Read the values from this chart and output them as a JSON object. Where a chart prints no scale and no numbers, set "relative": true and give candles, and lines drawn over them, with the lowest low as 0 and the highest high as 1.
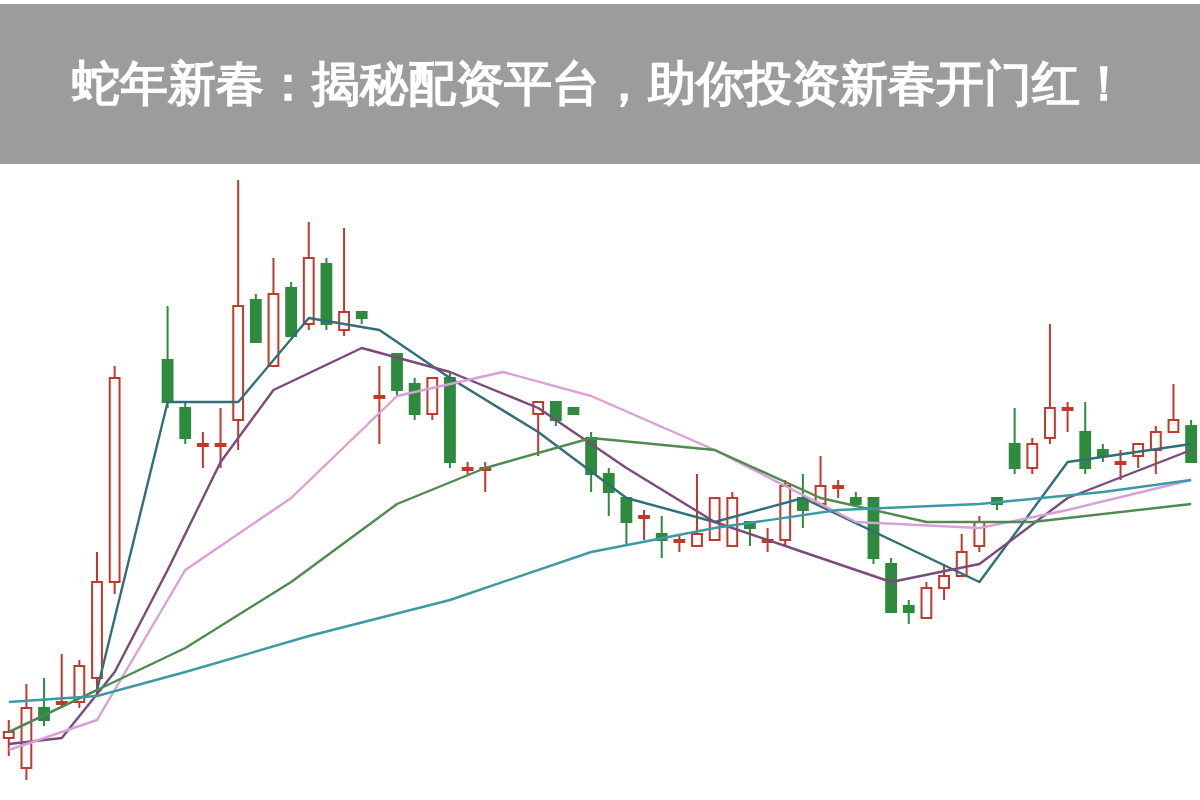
{
  "chart_data": {
    "type": "candlestick",
    "title": "蛇年新春：揭秘配资平台，助你投资新春开门红！",
    "relative": true,
    "categories": [
      null,
      null,
      null,
      null,
      null,
      null,
      null,
      null,
      null,
      null,
      null,
      null,
      null,
      null,
      null,
      null,
      null,
      null,
      null,
      null,
      null,
      null,
      null,
      null,
      null,
      null,
      null,
      null,
      null,
      null,
      null,
      null,
      null,
      null,
      null,
      null,
      null,
      null,
      null,
      null,
      null,
      null,
      null,
      null,
      null,
      null,
      null,
      null,
      null,
      null,
      null,
      null,
      null,
      null,
      null,
      null,
      null,
      null,
      null,
      null,
      null,
      null,
      null,
      null,
      null,
      null,
      null,
      null
    ],
    "ohlc": [
      [
        0.07,
        0.1,
        0.04,
        0.08
      ],
      [
        0.02,
        0.16,
        0,
        0.12
      ],
      [
        0.12,
        0.17,
        0.09,
        0.1
      ],
      [
        0.13,
        0.21,
        0.12,
        0.13
      ],
      [
        0.13,
        0.2,
        0.12,
        0.19
      ],
      [
        0.17,
        0.38,
        0.14,
        0.33
      ],
      [
        0.33,
        0.69,
        0.31,
        0.67
      ],
      null,
      null,
      [
        0.7,
        0.79,
        0.62,
        0.63
      ],
      [
        0.62,
        0.63,
        0.56,
        0.57
      ],
      [
        0.56,
        0.58,
        0.52,
        0.56
      ],
      [
        0.56,
        0.62,
        0.52,
        0.56
      ],
      [
        0.6,
        1.0,
        0.55,
        0.79
      ],
      [
        0.8,
        0.81,
        0.73,
        0.73
      ],
      [
        0.69,
        0.87,
        0.69,
        0.81
      ],
      [
        0.82,
        0.83,
        0.74,
        0.74
      ],
      [
        0.76,
        0.93,
        0.75,
        0.87
      ],
      [
        0.86,
        0.87,
        0.75,
        0.76
      ],
      [
        0.75,
        0.92,
        0.74,
        0.78
      ],
      [
        0.78,
        0.78,
        0.76,
        0.77
      ],
      [
        0.64,
        0.69,
        0.56,
        0.64
      ],
      [
        0.71,
        0.71,
        0.64,
        0.65
      ],
      [
        0.66,
        0.67,
        0.6,
        0.61
      ],
      [
        0.61,
        0.67,
        0.6,
        0.67
      ],
      [
        0.67,
        0.68,
        0.52,
        0.53
      ],
      [
        0.52,
        0.53,
        0.51,
        0.52
      ],
      [
        0.52,
        0.53,
        0.48,
        0.52
      ],
      null,
      null,
      [
        0.61,
        0.63,
        0.54,
        0.63
      ],
      [
        0.63,
        0.63,
        0.59,
        0.6
      ],
      [
        0.62,
        0.62,
        0.61,
        0.61
      ],
      [
        0.57,
        0.58,
        0.48,
        0.51
      ],
      [
        0.51,
        0.52,
        0.44,
        0.48
      ],
      [
        0.47,
        0.47,
        0.39,
        0.43
      ],
      [
        0.44,
        0.45,
        0.4,
        0.44
      ],
      [
        0.41,
        0.44,
        0.37,
        0.4
      ],
      [
        0.4,
        0.41,
        0.38,
        0.4
      ],
      [
        0.39,
        0.51,
        0.39,
        0.41
      ],
      [
        0.4,
        0.47,
        0.4,
        0.47
      ],
      [
        0.39,
        0.48,
        0.39,
        0.47
      ],
      [
        0.43,
        0.43,
        0.39,
        0.42
      ],
      [
        0.4,
        0.42,
        0.38,
        0.4
      ],
      [
        0.4,
        0.5,
        0.39,
        0.49
      ],
      [
        0.47,
        0.51,
        0.42,
        0.45
      ],
      [
        0.46,
        0.54,
        0.46,
        0.49
      ],
      [
        0.49,
        0.5,
        0.47,
        0.49
      ],
      [
        0.47,
        0.48,
        0.46,
        0.46
      ],
      [
        0.47,
        0.47,
        0.36,
        0.37
      ],
      [
        0.36,
        0.37,
        0.28,
        0.28
      ],
      [
        0.29,
        0.3,
        0.26,
        0.28
      ],
      [
        0.27,
        0.33,
        0.27,
        0.32
      ],
      [
        0.32,
        0.36,
        0.3,
        0.34
      ],
      [
        0.34,
        0.41,
        0.34,
        0.38
      ],
      [
        0.39,
        0.44,
        0.38,
        0.43
      ],
      [
        0.47,
        0.47,
        0.45,
        0.46
      ],
      [
        0.56,
        0.62,
        0.51,
        0.52
      ],
      [
        0.52,
        0.57,
        0.51,
        0.56
      ],
      [
        0.57,
        0.76,
        0.56,
        0.62
      ],
      [
        0.62,
        0.63,
        0.58,
        0.62
      ],
      [
        0.58,
        0.63,
        0.51,
        0.52
      ],
      [
        0.55,
        0.56,
        0.53,
        0.54
      ],
      [
        0.53,
        0.55,
        0.5,
        0.53
      ],
      [
        0.54,
        0.56,
        0.52,
        0.56
      ],
      [
        0.55,
        0.59,
        0.51,
        0.58
      ],
      [
        0.58,
        0.66,
        0.58,
        0.6
      ],
      [
        0.59,
        0.6,
        0.53,
        0.53
      ]
    ],
    "series": [
      {
        "type": "line",
        "color": "#2f6f7a",
        "values": [
          0.08,
          null,
          null,
          null,
          null,
          0.15,
          null,
          null,
          null,
          0.63,
          null,
          null,
          null,
          0.63,
          null,
          null,
          null,
          0.77,
          null,
          null,
          null,
          0.75,
          null,
          null,
          null,
          0.67,
          null,
          null,
          null,
          null,
          0.58,
          null,
          null,
          null,
          null,
          0.47,
          null,
          null,
          null,
          null,
          0.43,
          null,
          null,
          null,
          null,
          0.47,
          null,
          null,
          null,
          null,
          0.4,
          null,
          null,
          null,
          null,
          0.33,
          null,
          null,
          null,
          null,
          0.53,
          null,
          null,
          null,
          null,
          null,
          null,
          0.56
        ]
      },
      {
        "type": "line",
        "color": "#7b4a7d",
        "values": [
          0.06,
          null,
          null,
          0.07,
          null,
          null,
          0.18,
          null,
          null,
          0.35,
          null,
          null,
          0.53,
          null,
          null,
          0.65,
          null,
          null,
          null,
          null,
          0.72,
          null,
          null,
          null,
          null,
          0.68,
          null,
          null,
          null,
          null,
          0.62,
          null,
          null,
          null,
          null,
          0.52,
          null,
          null,
          null,
          null,
          0.43,
          null,
          null,
          null,
          null,
          0.38,
          null,
          null,
          null,
          null,
          0.33,
          null,
          null,
          null,
          null,
          0.36,
          null,
          null,
          null,
          null,
          0.47,
          null,
          null,
          null,
          null,
          null,
          null,
          0.55
        ]
      },
      {
        "type": "line",
        "color": "#d9a0d8",
        "values": [
          0.05,
          null,
          null,
          null,
          null,
          0.1,
          null,
          null,
          null,
          null,
          0.35,
          null,
          null,
          null,
          null,
          null,
          0.47,
          null,
          null,
          null,
          null,
          null,
          0.64,
          null,
          null,
          null,
          null,
          null,
          0.68,
          null,
          null,
          null,
          null,
          0.64,
          null,
          null,
          null,
          null,
          null,
          null,
          0.55,
          null,
          null,
          null,
          null,
          null,
          null,
          null,
          0.43,
          null,
          null,
          null,
          null,
          null,
          null,
          0.42,
          null,
          null,
          null,
          null,
          0.45,
          null,
          null,
          null,
          null,
          null,
          null,
          0.5
        ]
      },
      {
        "type": "line",
        "color": "#4f8a4f",
        "values": [
          0.08,
          null,
          null,
          null,
          null,
          0.15,
          null,
          null,
          null,
          null,
          0.22,
          null,
          null,
          null,
          null,
          null,
          0.33,
          null,
          null,
          null,
          null,
          null,
          0.46,
          null,
          null,
          null,
          null,
          0.52,
          null,
          null,
          null,
          null,
          null,
          0.57,
          null,
          null,
          null,
          null,
          null,
          null,
          0.55,
          null,
          null,
          null,
          null,
          null,
          0.47,
          null,
          null,
          null,
          null,
          null,
          0.43,
          null,
          null,
          null,
          null,
          null,
          0.43,
          null,
          null,
          null,
          null,
          null,
          null,
          null,
          null,
          0.46
        ]
      },
      {
        "type": "line",
        "color": "#3a9aa6",
        "values": [
          0.13,
          null,
          null,
          null,
          null,
          0.14,
          null,
          null,
          null,
          null,
          0.18,
          null,
          null,
          null,
          null,
          null,
          null,
          0.24,
          null,
          null,
          null,
          null,
          null,
          null,
          null,
          0.3,
          null,
          null,
          null,
          null,
          null,
          null,
          null,
          0.38,
          null,
          null,
          null,
          null,
          null,
          null,
          0.42,
          null,
          null,
          null,
          null,
          null,
          null,
          0.45,
          null,
          null,
          null,
          null,
          null,
          null,
          null,
          0.46,
          null,
          null,
          null,
          null,
          null,
          null,
          0.48,
          null,
          null,
          null,
          null,
          0.5
        ]
      }
    ]
  }
}
